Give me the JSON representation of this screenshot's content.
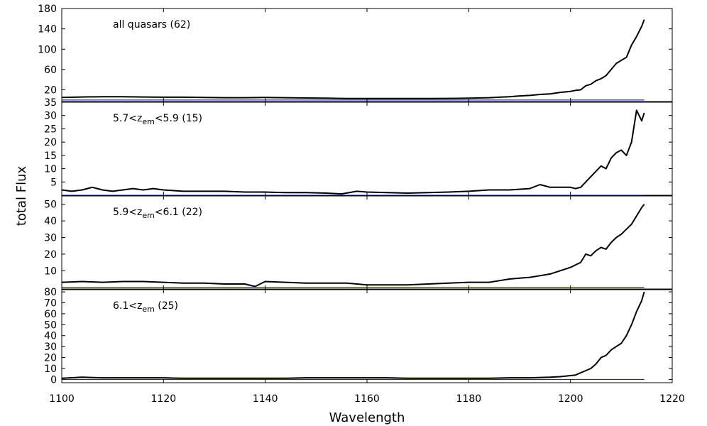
{
  "chart_data": {
    "type": "line",
    "layout": "four stacked panels sharing the x axis",
    "xlabel": "Wavelength",
    "ylabel": "total Flux",
    "xlim": [
      1100,
      1220
    ],
    "x_ticks": [
      "1100",
      "1120",
      "1140",
      "1160",
      "1180",
      "1200",
      "1220"
    ],
    "colors": {
      "flux": "#000000",
      "zero": "#0000aa"
    },
    "panels": [
      {
        "label_main": "all quasars (62)",
        "label_parts": [],
        "ylim": [
          -3,
          180
        ],
        "y_ticks": [
          20,
          60,
          100,
          140,
          180
        ],
        "y_tick_labels": [
          "20",
          "60",
          "100",
          "140",
          "180"
        ],
        "series": [
          {
            "x": [
              1100,
              1104,
              1108,
              1112,
              1116,
              1120,
              1124,
              1128,
              1132,
              1136,
              1140,
              1144,
              1148,
              1152,
              1156,
              1160,
              1164,
              1168,
              1172,
              1176,
              1180,
              1184,
              1186,
              1188,
              1190,
              1192,
              1194,
              1196,
              1198,
              1200,
              1201,
              1202,
              1203,
              1204,
              1205,
              1206,
              1207,
              1208,
              1209,
              1210,
              1211,
              1212,
              1213,
              1214,
              1214.5
            ],
            "y": [
              5,
              6,
              6.5,
              6.5,
              6,
              5.5,
              5.5,
              5,
              4.5,
              4.5,
              5,
              4.5,
              4,
              3.5,
              3,
              3,
              2.8,
              2.8,
              3,
              3.2,
              3.5,
              4.5,
              5.5,
              6.5,
              8,
              9,
              11,
              12,
              15,
              17,
              19,
              20,
              28,
              31,
              38,
              42,
              48,
              60,
              72,
              78,
              84,
              108,
              125,
              145,
              158
            ]
          }
        ]
      },
      {
        "label_main": "5.7<z",
        "label_parts": [
          {
            "text": "em",
            "sub": true
          },
          {
            "text": "<5.9 (15)",
            "sub": false
          }
        ],
        "ylim": [
          0,
          35
        ],
        "y_ticks": [
          5,
          10,
          15,
          20,
          25,
          30,
          35
        ],
        "y_tick_labels": [
          "5",
          "10",
          "15",
          "20",
          "25",
          "30",
          "35"
        ],
        "series": [
          {
            "x": [
              1100,
              1102,
              1104,
              1106,
              1108,
              1110,
              1112,
              1114,
              1116,
              1118,
              1120,
              1124,
              1128,
              1132,
              1136,
              1140,
              1144,
              1148,
              1152,
              1155,
              1158,
              1160,
              1164,
              1168,
              1172,
              1176,
              1180,
              1184,
              1188,
              1192,
              1194,
              1196,
              1198,
              1200,
              1201,
              1202,
              1203,
              1204,
              1205,
              1206,
              1207,
              1208,
              1209,
              1210,
              1211,
              1212,
              1213,
              1214,
              1214.5
            ],
            "y": [
              2,
              1.5,
              2,
              3,
              2,
              1.5,
              2,
              2.5,
              2,
              2.5,
              2,
              1.5,
              1.5,
              1.5,
              1.2,
              1.2,
              1,
              1,
              0.8,
              0.5,
              1.5,
              1.2,
              1,
              0.8,
              1,
              1.2,
              1.5,
              2,
              2,
              2.5,
              4,
              3,
              3,
              3,
              2.5,
              3,
              5,
              7,
              9,
              11,
              10,
              14,
              16,
              17,
              15,
              20,
              32,
              28,
              31
            ]
          }
        ]
      },
      {
        "label_main": "5.9<z",
        "label_parts": [
          {
            "text": "em",
            "sub": true
          },
          {
            "text": "<6.1 (22)",
            "sub": false
          }
        ],
        "ylim": [
          -1,
          55
        ],
        "y_ticks": [
          10,
          20,
          30,
          40,
          50
        ],
        "y_tick_labels": [
          "10",
          "20",
          "30",
          "40",
          "50"
        ],
        "series": [
          {
            "x": [
              1100,
              1104,
              1108,
              1112,
              1116,
              1120,
              1124,
              1128,
              1132,
              1136,
              1138,
              1140,
              1144,
              1148,
              1152,
              1156,
              1160,
              1164,
              1168,
              1172,
              1176,
              1180,
              1184,
              1186,
              1188,
              1190,
              1192,
              1194,
              1196,
              1198,
              1200,
              1202,
              1203,
              1204,
              1205,
              1206,
              1207,
              1208,
              1209,
              1210,
              1211,
              1212,
              1213,
              1214,
              1214.5
            ],
            "y": [
              3,
              3.5,
              3,
              3.5,
              3.5,
              3,
              2.5,
              2.5,
              2,
              2,
              0.5,
              3.5,
              3,
              2.5,
              2.5,
              2.5,
              1.5,
              1.5,
              1.5,
              2,
              2.5,
              3,
              3,
              4,
              5,
              5.5,
              6,
              7,
              8,
              10,
              12,
              15,
              20,
              19,
              22,
              24,
              23,
              27,
              30,
              32,
              35,
              38,
              43,
              48,
              50
            ]
          }
        ]
      },
      {
        "label_main": "6.1<z",
        "label_parts": [
          {
            "text": "em",
            "sub": true
          },
          {
            "text": " (25)",
            "sub": false
          }
        ],
        "ylim": [
          -3,
          82
        ],
        "y_ticks": [
          0,
          10,
          20,
          30,
          40,
          50,
          60,
          70,
          80
        ],
        "y_tick_labels": [
          "0",
          "10",
          "20",
          "30",
          "40",
          "50",
          "60",
          "70",
          "80"
        ],
        "series": [
          {
            "x": [
              1100,
              1104,
              1108,
              1112,
              1116,
              1120,
              1124,
              1128,
              1132,
              1136,
              1140,
              1144,
              1148,
              1152,
              1156,
              1160,
              1164,
              1168,
              1172,
              1176,
              1180,
              1184,
              1188,
              1192,
              1196,
              1198,
              1200,
              1201,
              1202,
              1203,
              1204,
              1205,
              1206,
              1207,
              1208,
              1209,
              1210,
              1211,
              1212,
              1213,
              1214,
              1214.5
            ],
            "y": [
              1,
              2,
              1.5,
              1.5,
              1.5,
              1.5,
              1,
              1,
              1,
              1,
              1,
              1,
              1.5,
              1.5,
              1.5,
              1.5,
              1.5,
              1,
              1,
              1,
              1,
              1,
              1.5,
              1.5,
              2,
              2.5,
              3.5,
              4,
              6,
              8,
              10,
              14,
              20,
              22,
              27,
              30,
              33,
              40,
              50,
              62,
              72,
              80
            ]
          }
        ]
      }
    ]
  }
}
